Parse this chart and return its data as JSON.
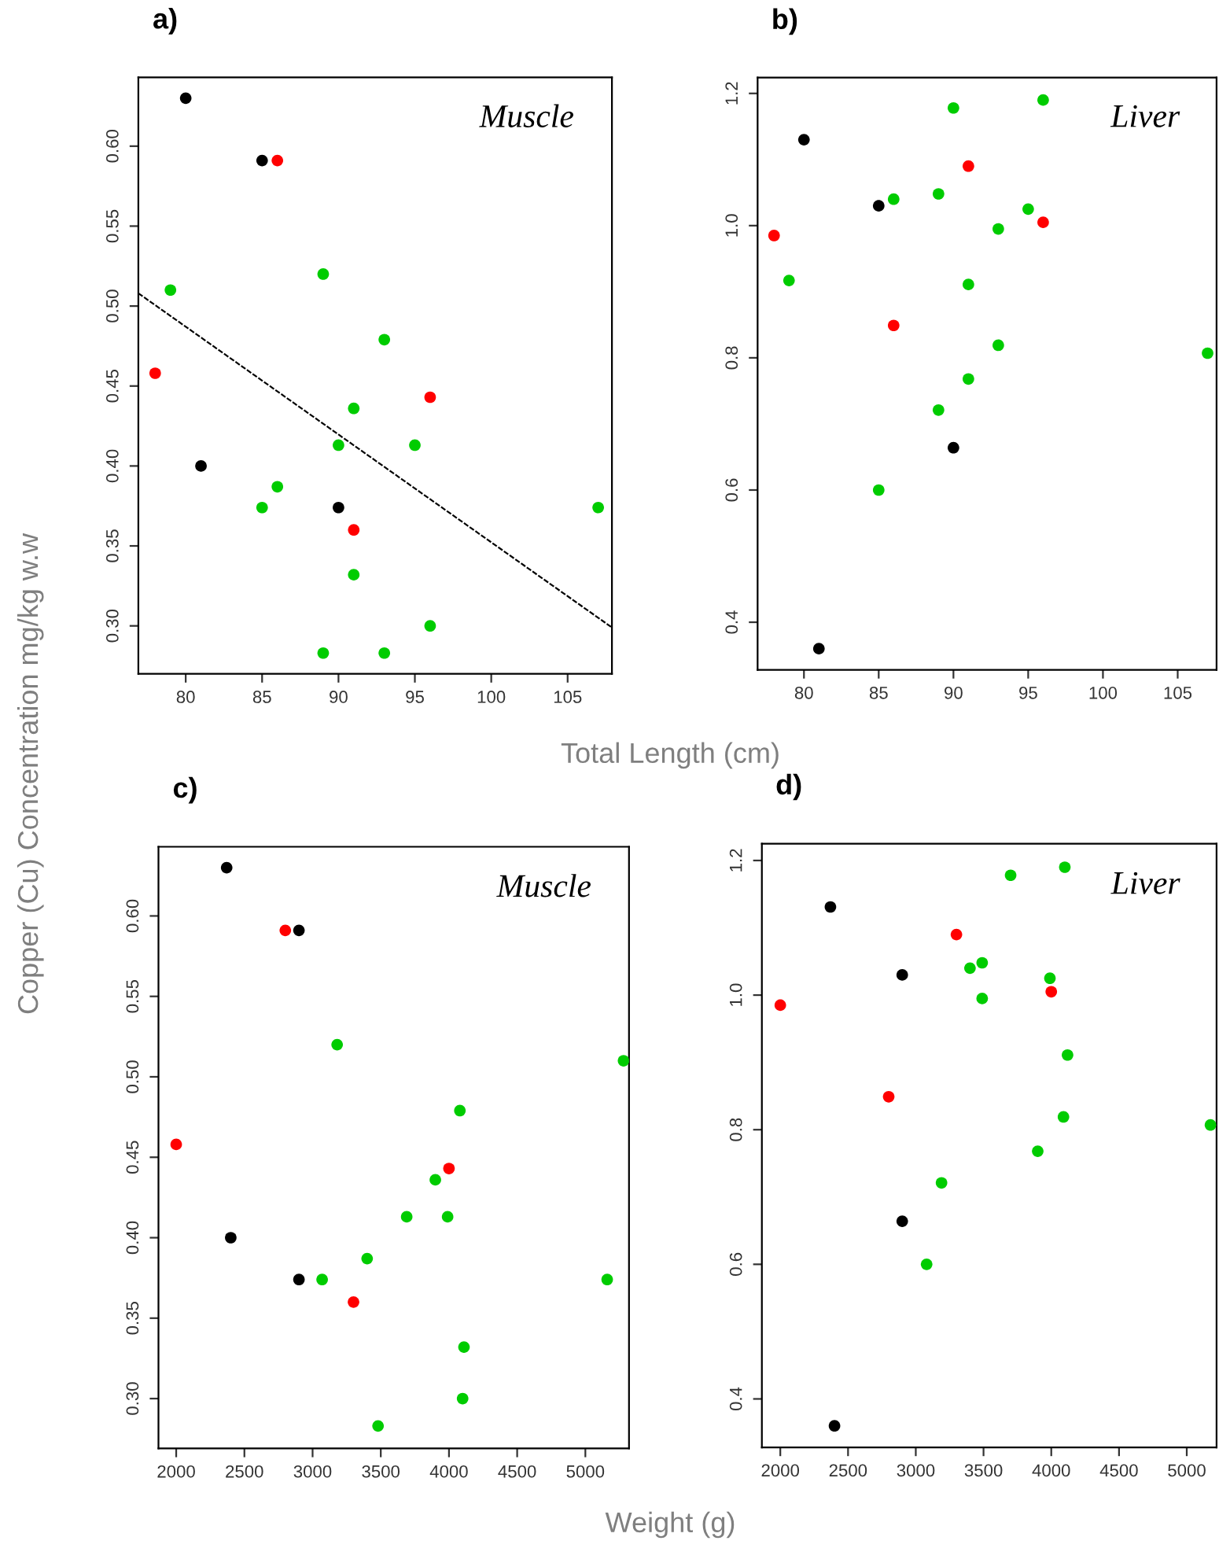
{
  "chart_data": [
    {
      "type": "scatter",
      "title": "a)",
      "xlabel": "Total Length (cm)",
      "ylabel": "Copper (Cu) Concentration mg/kg w.w",
      "annotations": [
        "Muscle"
      ],
      "xlim": [
        76.9,
        107.9
      ],
      "ylim": [
        0.27,
        0.643
      ],
      "xticks": [
        80,
        85,
        90,
        95,
        100,
        105
      ],
      "yticks": [
        {
          "value": 0.3,
          "label": "0.30"
        },
        {
          "value": 0.35,
          "label": "0.35"
        },
        {
          "value": 0.4,
          "label": "0.40"
        },
        {
          "value": 0.45,
          "label": "0.45"
        },
        {
          "value": 0.5,
          "label": "0.50"
        },
        {
          "value": 0.55,
          "label": "0.55"
        },
        {
          "value": 0.6,
          "label": "0.60"
        }
      ],
      "series": [
        {
          "marker": "circle",
          "color": "#000000",
          "x": [
            80,
            85,
            81,
            90
          ],
          "values": [
            0.63,
            0.591,
            0.4,
            0.374
          ]
        },
        {
          "marker": "circle",
          "color": "#ff0000",
          "x": [
            86,
            78,
            96,
            91
          ],
          "values": [
            0.591,
            0.458,
            0.443,
            0.36
          ]
        },
        {
          "marker": "circle",
          "color": "#00cc00",
          "x": [
            79,
            89,
            93,
            91,
            90,
            95,
            86,
            85,
            107,
            91,
            96,
            89,
            93
          ],
          "values": [
            0.51,
            0.52,
            0.479,
            0.436,
            0.413,
            0.413,
            0.387,
            0.374,
            0.374,
            0.332,
            0.3,
            0.283,
            0.283
          ]
        },
        {
          "type": "line",
          "color": "#000000",
          "line_style": "dashed",
          "x": [
            76.9,
            107.9
          ],
          "values": [
            0.508,
            0.299
          ]
        }
      ]
    },
    {
      "type": "scatter",
      "title": "b)",
      "annotations": [
        "Liver"
      ],
      "marker": "circle",
      "xlim": [
        76.9,
        107.6
      ],
      "ylim": [
        0.328,
        1.224
      ],
      "xticks": [
        80,
        85,
        90,
        95,
        100,
        105
      ],
      "yticks": [
        0.4,
        0.6,
        0.8,
        {
          "value": 1.0,
          "label": "1.0"
        },
        1.2
      ],
      "series": [
        {
          "color": "#000000",
          "x": [
            80,
            85,
            90,
            81
          ],
          "values": [
            1.13,
            1.03,
            0.664,
            0.36
          ]
        },
        {
          "color": "#ff0000",
          "x": [
            78,
            91,
            96,
            86
          ],
          "values": [
            0.985,
            1.09,
            1.005,
            0.849
          ]
        },
        {
          "color": "#00cc00",
          "x": [
            90,
            96,
            86,
            89,
            95,
            93,
            79,
            91,
            93,
            107,
            91,
            89,
            85
          ],
          "values": [
            1.178,
            1.19,
            1.04,
            1.048,
            1.025,
            0.995,
            0.917,
            0.911,
            0.819,
            0.807,
            0.768,
            0.721,
            0.6
          ]
        }
      ]
    },
    {
      "type": "scatter",
      "title": "c)",
      "xlabel": "Weight (g)",
      "annotations": [
        "Muscle"
      ],
      "marker": "circle",
      "xlim": [
        1870,
        5320
      ],
      "ylim": [
        0.269,
        0.643
      ],
      "xticks": [
        2000,
        2500,
        3000,
        3500,
        4000,
        4500,
        5000
      ],
      "yticks": [
        {
          "value": 0.3,
          "label": "0.30"
        },
        {
          "value": 0.35,
          "label": "0.35"
        },
        {
          "value": 0.4,
          "label": "0.40"
        },
        {
          "value": 0.45,
          "label": "0.45"
        },
        {
          "value": 0.5,
          "label": "0.50"
        },
        {
          "value": 0.55,
          "label": "0.55"
        },
        {
          "value": 0.6,
          "label": "0.60"
        }
      ],
      "series": [
        {
          "color": "#000000",
          "x": [
            2370,
            2900,
            2400,
            2900
          ],
          "values": [
            0.63,
            0.591,
            0.4,
            0.374
          ]
        },
        {
          "color": "#ff0000",
          "x": [
            2800,
            2000,
            4000,
            3300
          ],
          "values": [
            0.591,
            0.458,
            0.443,
            0.36
          ]
        },
        {
          "color": "#00cc00",
          "x": [
            3180,
            5280,
            4080,
            3900,
            3690,
            3990,
            3400,
            3070,
            5160,
            4110,
            4100,
            3480
          ],
          "values": [
            0.52,
            0.51,
            0.479,
            0.436,
            0.413,
            0.413,
            0.387,
            0.374,
            0.374,
            0.332,
            0.3,
            0.283
          ]
        }
      ]
    },
    {
      "type": "scatter",
      "title": "d)",
      "annotations": [
        "Liver"
      ],
      "marker": "circle",
      "xlim": [
        1864,
        5220
      ],
      "ylim": [
        0.328,
        1.225
      ],
      "xticks": [
        2000,
        2500,
        3000,
        3500,
        4000,
        4500,
        5000
      ],
      "yticks": [
        0.4,
        0.6,
        0.8,
        {
          "value": 1.0,
          "label": "1.0"
        },
        1.2
      ],
      "series": [
        {
          "color": "#000000",
          "x": [
            2370,
            2900,
            2900,
            2400
          ],
          "values": [
            1.131,
            1.03,
            0.664,
            0.36
          ]
        },
        {
          "color": "#ff0000",
          "x": [
            2000,
            3300,
            4000,
            2800
          ],
          "values": [
            0.985,
            1.09,
            1.005,
            0.849
          ]
        },
        {
          "color": "#00cc00",
          "x": [
            3700,
            4100,
            3400,
            3490,
            3990,
            3490,
            4120,
            4090,
            5175,
            3900,
            3190,
            3080
          ],
          "values": [
            1.178,
            1.19,
            1.04,
            1.048,
            1.025,
            0.995,
            0.911,
            0.819,
            0.807,
            0.768,
            0.721,
            0.6
          ]
        }
      ]
    }
  ]
}
